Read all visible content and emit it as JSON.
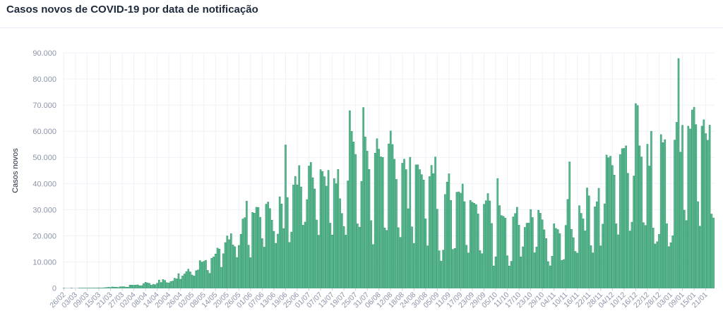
{
  "chart_data": {
    "type": "bar",
    "title": "Casos novos de COVID-19 por data de notificação",
    "xlabel": "",
    "ylabel": "Casos novos",
    "ylim": [
      0,
      90000
    ],
    "y_ticks": [
      "0",
      "10.000",
      "20.000",
      "30.000",
      "40.000",
      "50.000",
      "60.000",
      "70.000",
      "80.000",
      "90.000"
    ],
    "x_ticks": [
      "26/02",
      "03/03",
      "09/03",
      "15/03",
      "21/03",
      "27/03",
      "02/04",
      "08/04",
      "14/04",
      "20/04",
      "26/04",
      "02/05",
      "08/05",
      "14/05",
      "20/05",
      "26/05",
      "01/06",
      "07/06",
      "13/06",
      "19/06",
      "25/06",
      "01/07",
      "07/07",
      "13/07",
      "19/07",
      "25/07",
      "31/07",
      "06/08",
      "12/08",
      "18/08",
      "24/08",
      "30/08",
      "05/09",
      "11/09",
      "17/09",
      "23/09",
      "29/09",
      "05/10",
      "11/10",
      "17/10",
      "23/10",
      "29/10",
      "04/11",
      "10/11",
      "16/11",
      "22/11",
      "28/11",
      "04/12",
      "10/12",
      "16/12",
      "22/12",
      "28/12",
      "03/01",
      "09/01",
      "15/01",
      "21/01"
    ],
    "grid": true,
    "color": "#2e9a6c",
    "values": [
      1,
      0,
      0,
      0,
      1,
      0,
      0,
      0,
      1,
      5,
      5,
      6,
      7,
      9,
      12,
      25,
      33,
      23,
      79,
      34,
      57,
      137,
      193,
      283,
      224,
      418,
      345,
      310,
      232,
      482,
      502,
      487,
      352,
      323,
      1138,
      1119,
      1074,
      1146,
      1222,
      852,
      926,
      1661,
      2210,
      1930,
      1781,
      1089,
      1442,
      1261,
      1832,
      3058,
      2105,
      3257,
      2917,
      2055,
      1927,
      2498,
      2678,
      3735,
      3503,
      5514,
      3379,
      4613,
      5385,
      6276,
      7218,
      6209,
      4970,
      4588,
      6633,
      6935,
      10503,
      9888,
      10222,
      10611,
      6760,
      5632,
      11385,
      11923,
      13028,
      15305,
      14919,
      7938,
      13140,
      17408,
      19951,
      18508,
      20803,
      16508,
      15813,
      11687,
      16324,
      20599,
      26417,
      26928,
      33274,
      16409,
      11598,
      28936,
      28633,
      30925,
      30830,
      27075,
      18912,
      15654,
      32091,
      32913,
      30412,
      25982,
      21704,
      17110,
      20647,
      34918,
      32188,
      22765,
      54771,
      34666,
      17459,
      21432,
      39436,
      42725,
      39483,
      46860,
      38693,
      24052,
      25234,
      33846,
      46712,
      48105,
      42223,
      37923,
      26051,
      20229,
      45305,
      44571,
      42619,
      39023,
      45048,
      24831,
      20286,
      41857,
      39924,
      45403,
      34177,
      28532,
      23529,
      20257,
      41008,
      67860,
      59961,
      55891,
      51147,
      24578,
      23284,
      40816,
      69074,
      57837,
      52383,
      45392,
      25800,
      16641,
      51603,
      57152,
      53139,
      50230,
      49970,
      23010,
      22048,
      55155,
      60091,
      54923,
      49274,
      41576,
      23101,
      19373,
      47784,
      49298,
      45323,
      30355,
      50032,
      23421,
      17078,
      47134,
      47161,
      45323,
      43412,
      41350,
      26465,
      16158,
      42659,
      46934,
      43773,
      50163,
      30168,
      14279,
      10273,
      14521,
      35816,
      40557,
      43718,
      33523,
      14768,
      15155,
      36653,
      36820,
      36303,
      39797,
      33057,
      16389,
      13439,
      33536,
      32817,
      32445,
      31911,
      28378,
      14318,
      13155,
      32058,
      33413,
      36157,
      33340,
      24718,
      8456,
      11946,
      41906,
      31553,
      27750,
      27444,
      26749,
      12342,
      8426,
      10220,
      27235,
      28523,
      30914,
      24062,
      11928,
      15783,
      23227,
      24818,
      24858,
      30026,
      26979,
      13493,
      15726,
      29787,
      28629,
      26106,
      22282,
      18947,
      10100,
      8501,
      12170,
      24591,
      22834,
      22380,
      20811,
      10554,
      10917,
      23976,
      33922,
      48282,
      22445,
      19279,
      14011,
      13371,
      31525,
      28587,
      26482,
      21860,
      38307,
      35294,
      16207,
      13468,
      31100,
      33003,
      38176,
      16130,
      24468,
      32227,
      50909,
      49863,
      50434,
      46884,
      43225,
      24581,
      20371,
      51088,
      53347,
      53453,
      54428,
      43900,
      21825,
      25193,
      42889,
      70574,
      69826,
      54428,
      50177,
      25019,
      23954,
      55019,
      46696,
      60000,
      22967,
      16849,
      17718,
      20548,
      58718,
      55649,
      56773,
      24605,
      15827,
      17341,
      20006,
      56648,
      63430,
      87843,
      52035,
      62290,
      29792,
      25822,
      61963,
      60899,
      68138,
      69198,
      62532,
      33040,
      23671,
      61963,
      64385,
      59119,
      56552,
      62334,
      28323,
      26816
    ]
  }
}
